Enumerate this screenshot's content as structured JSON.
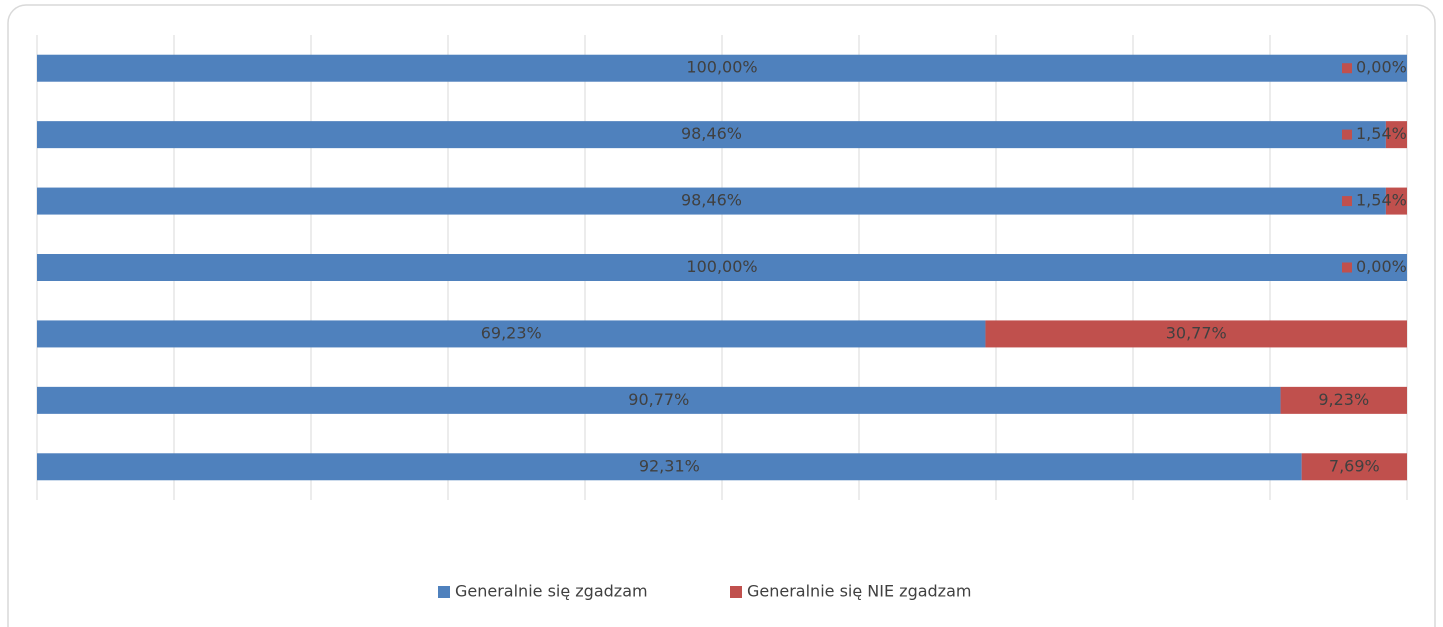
{
  "chart_data": {
    "type": "stacked_barh",
    "categories": [
      null,
      null,
      null,
      null,
      null,
      null,
      null
    ],
    "series": [
      {
        "name": "Generalnie się zgadzam",
        "color": "#4f81bd",
        "values": [
          100,
          98.46,
          98.46,
          100,
          69.23,
          90.77,
          92.31
        ],
        "value_labels": [
          "100,00%",
          "98,46%",
          "98,46%",
          "100,00%",
          "69,23%",
          "90,77%",
          "92,31%"
        ]
      },
      {
        "name": "Generalnie się NIE zgadzam",
        "color": "#c0504d",
        "values": [
          0,
          1.54,
          1.54,
          0,
          30.77,
          9.23,
          7.69
        ],
        "value_labels": [
          "0,00%",
          "1,54%",
          "1,54%",
          "0,00%",
          "30,77%",
          "9,23%",
          "7,69%"
        ]
      }
    ],
    "xlim": [
      0,
      100
    ],
    "xticks": [
      0,
      10,
      20,
      30,
      40,
      50,
      60,
      70,
      80,
      90,
      100
    ],
    "grid": true,
    "legend": "bottom"
  }
}
